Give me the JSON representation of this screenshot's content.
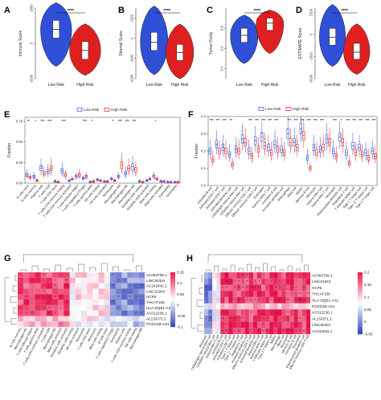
{
  "colors": {
    "low": "#2f4fd6",
    "high": "#e02020",
    "heat_pos": "#e8124a",
    "heat_neg": "#2a3fb8"
  },
  "chart_data": [
    {
      "panel": "A",
      "type": "violin",
      "ylabel": "Immune Score",
      "yticks": [
        "-2000",
        "0",
        "2000"
      ],
      "ylim": [
        -2000,
        2000
      ],
      "categories": [
        "Low Risk",
        "High Risk"
      ],
      "significance": "****",
      "series": [
        {
          "name": "Low Risk",
          "median": 800,
          "q1": 300,
          "q3": 1300,
          "min": -1300,
          "max": 2300
        },
        {
          "name": "High Risk",
          "median": -400,
          "q1": -900,
          "q3": 100,
          "min": -1800,
          "max": 1100
        }
      ]
    },
    {
      "panel": "B",
      "type": "violin",
      "ylabel": "Stromal Score",
      "yticks": [
        "-2000",
        "-1000",
        "0",
        "1000"
      ],
      "ylim": [
        -2000,
        1500
      ],
      "categories": [
        "Low Risk",
        "High Risk"
      ],
      "significance": "****",
      "series": [
        {
          "name": "Low Risk",
          "median": -200,
          "q1": -600,
          "q3": 300,
          "min": -1800,
          "max": 1600
        },
        {
          "name": "High Risk",
          "median": -700,
          "q1": -1100,
          "q3": -300,
          "min": -2000,
          "max": 700
        }
      ]
    },
    {
      "panel": "C",
      "type": "violin",
      "ylabel": "Tumor Purity",
      "yticks": [
        "0.4",
        "0.6",
        "0.8"
      ],
      "ylim": [
        0.3,
        1.0
      ],
      "categories": [
        "Low Risk",
        "High Risk"
      ],
      "significance": "****",
      "series": [
        {
          "name": "Low Risk",
          "median": 0.73,
          "q1": 0.66,
          "q3": 0.8,
          "min": 0.45,
          "max": 0.93
        },
        {
          "name": "High Risk",
          "median": 0.85,
          "q1": 0.78,
          "q3": 0.9,
          "min": 0.55,
          "max": 0.98
        }
      ]
    },
    {
      "panel": "D",
      "type": "violin",
      "ylabel": "ESTIMATE Score",
      "yticks": [
        "-5000",
        "-2500",
        "0",
        "2500"
      ],
      "ylim": [
        -5000,
        3000
      ],
      "categories": [
        "Low Risk",
        "High Risk"
      ],
      "significance": "****",
      "series": [
        {
          "name": "Low Risk",
          "median": -300,
          "q1": -1200,
          "q3": 700,
          "min": -3600,
          "max": 3400
        },
        {
          "name": "High Risk",
          "median": -2000,
          "q1": -2800,
          "q3": -1000,
          "min": -4500,
          "max": 1200
        }
      ]
    },
    {
      "panel": "E",
      "type": "box",
      "ylabel": "Fraction",
      "yticks": [
        "0.00",
        "0.25",
        "0.50",
        "0.75"
      ],
      "ylim": [
        0,
        0.8
      ],
      "legend": [
        "Low Risk",
        "High Risk"
      ],
      "categories": [
        "B cells naive",
        "B cells memory",
        "Plasma cells",
        "T cells CD8",
        "T cells CD4 naive",
        "T cells CD4 memory resting",
        "T cells CD4 memory activated",
        "T cells follicular helper",
        "T cells regulatory (Tregs)",
        "T cells gamma delta",
        "NK cells resting",
        "NK cells activated",
        "Monocytes",
        "Macrophages M0",
        "Macrophages M1",
        "Macrophages M2",
        "Dendritic cells resting",
        "Dendritic cells activated",
        "Mast cells resting",
        "Mast cells activated",
        "Eosinophils",
        "Neutrophils"
      ],
      "signif": [
        "**",
        "*",
        "***",
        "***",
        "",
        "***",
        "",
        "",
        "***",
        "*",
        "",
        "",
        "*",
        "***",
        "***",
        "***",
        "",
        "",
        "*",
        "",
        "",
        ""
      ],
      "series": [
        {
          "name": "Low Risk",
          "values": [
            0.1,
            0.08,
            0.18,
            0.14,
            0.02,
            0.15,
            0.03,
            0.08,
            0.06,
            0.01,
            0.04,
            0.02,
            0.05,
            0.08,
            0.12,
            0.2,
            0.02,
            0.03,
            0.08,
            0.02,
            0.01,
            0.01
          ]
        },
        {
          "name": "High Risk",
          "values": [
            0.07,
            0.03,
            0.12,
            0.18,
            0.01,
            0.1,
            0.05,
            0.1,
            0.08,
            0.02,
            0.03,
            0.02,
            0.03,
            0.22,
            0.18,
            0.16,
            0.01,
            0.05,
            0.05,
            0.02,
            0.01,
            0.01
          ]
        }
      ]
    },
    {
      "panel": "F",
      "type": "box",
      "ylabel": "Fraction",
      "yticks": [
        "0.0",
        "0.1",
        "0.2",
        "0.3",
        "0.4"
      ],
      "ylim": [
        0,
        0.4
      ],
      "legend": [
        "Low Risk",
        "High Risk"
      ],
      "categories": [
        "Activated B cell",
        "Activated CD4 T cell",
        "Activated CD8 T cell",
        "Activated dendritic cell",
        "CD56bright natural killer cell",
        "CD56dim natural killer cell",
        "Effector memory CD4 T cell",
        "Effector memory CD8 T cell",
        "Eosinophil",
        "Gamma delta T cell",
        "Immature B cell",
        "Immature dendritic cell",
        "Macrophage",
        "Mast cell",
        "MDSC",
        "Memory B cell",
        "Monocyte",
        "Natural killer cell",
        "Natural killer T cell",
        "Neutrophil",
        "Plasmacytoid dendritic cell",
        "Regulatory T cell",
        "T follicular helper cell",
        "Type 1 T helper cell",
        "Type 17 T helper cell",
        "Type 2 T helper cell"
      ],
      "signif": [
        "***",
        "***",
        "***",
        "**",
        "",
        "",
        "***",
        "***",
        "***",
        "***",
        "***",
        "",
        "***",
        "***",
        "***",
        "***",
        "***",
        "***",
        "",
        "***",
        "*",
        "***",
        "***",
        "***",
        "***",
        "***"
      ],
      "series": [
        {
          "name": "Low Risk",
          "values": [
            0.2,
            0.24,
            0.22,
            0.18,
            0.21,
            0.27,
            0.2,
            0.26,
            0.28,
            0.22,
            0.24,
            0.21,
            0.3,
            0.25,
            0.33,
            0.16,
            0.22,
            0.21,
            0.27,
            0.2,
            0.28,
            0.19,
            0.23,
            0.22,
            0.19,
            0.2
          ]
        },
        {
          "name": "High Risk",
          "values": [
            0.15,
            0.2,
            0.2,
            0.12,
            0.2,
            0.25,
            0.17,
            0.21,
            0.23,
            0.19,
            0.21,
            0.19,
            0.25,
            0.22,
            0.29,
            0.1,
            0.19,
            0.22,
            0.25,
            0.17,
            0.25,
            0.13,
            0.19,
            0.18,
            0.16,
            0.17
          ]
        }
      ]
    },
    {
      "panel": "G",
      "type": "heatmap",
      "rows": [
        "AC083799.1",
        "LINC00324",
        "AC242842.1",
        "LINC01943",
        "HCP5",
        "THCAT158",
        "HLA-DQB1-AS1",
        "AC012236.1",
        "AL133371.2",
        "PCED1B-AS1"
      ],
      "cols": [
        "B cells memory",
        "Macrophages M1",
        "T cells follicular helper",
        "T cells gamma delta",
        "T cells CD4 memory activated",
        "T cells CD8",
        "Macrophages M2",
        "Mast cells activated",
        "Dendritic cells activated",
        "Dendritic cells resting",
        "NK cells activated",
        "Neutrophils",
        "T cells CD4 naive",
        "Monocytes",
        "Mast cells resting",
        "B cells naive",
        "T cells regulatory (Tregs)",
        "Eosinophils",
        "Plasma cells",
        "T cells CD4 memory resting",
        "NK cells resting",
        "Macrophages M0"
      ],
      "scale": {
        "min": -0.1,
        "max": 0.15,
        "ticks": [
          "0.15",
          "0.1",
          "0.05",
          "0",
          "-0.05",
          "-0.1"
        ]
      }
    },
    {
      "panel": "H",
      "type": "heatmap",
      "rows": [
        "AC083799.1",
        "LINC01943",
        "HCP5",
        "THCAT158",
        "HLA-DQB1-AS1",
        "PCED1B-AS1",
        "AC012236.1",
        "AL133371.2",
        "LINC00324",
        "AC242842.1"
      ],
      "cols": [
        "Monocyte",
        "CD56bright natural killer cell",
        "CD56dim natural killer cell",
        "Natural killer T cell",
        "Activated B cell",
        "Activated CD4 T cell",
        "Activated CD8 T cell",
        "Type 1 T helper cell",
        "Type 17 T helper cell",
        "Regulatory T cell",
        "Immature dendritic cell",
        "Effector memory CD4 T cell",
        "Activated dendritic cell",
        "Natural killer cell",
        "Gamma delta T cell",
        "T follicular helper cell",
        "Type 2 T helper cell",
        "MDSC",
        "Macrophage",
        "Mast cell",
        "Neutrophil",
        "Memory B cell",
        "Immature B cell",
        "Eosinophil",
        "Plasmacytoid dendritic cell",
        "Effector memory CD8 T cell"
      ],
      "scale": {
        "min": -0.05,
        "max": 0.2,
        "ticks": [
          "0.2",
          "0.15",
          "0.1",
          "0.05",
          "0",
          "-0.05"
        ]
      }
    }
  ]
}
